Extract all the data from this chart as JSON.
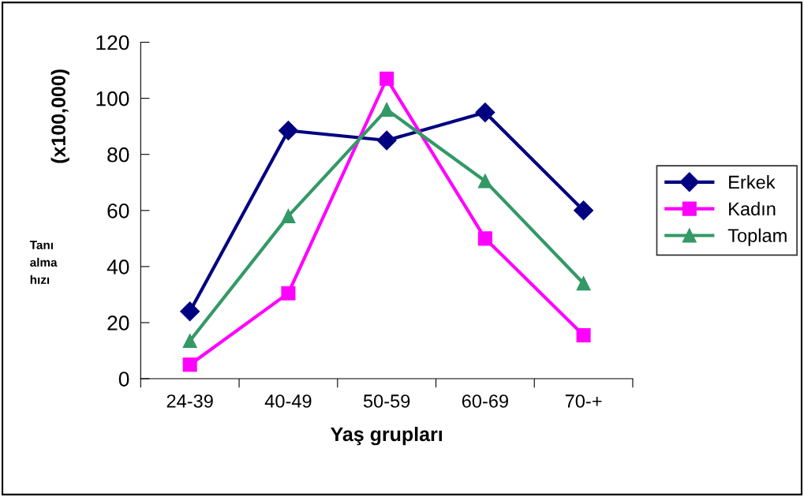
{
  "chart_data": {
    "type": "line",
    "xlabel": "Yaş grupları",
    "ylabel": "(x100,000)",
    "annotations": [
      "Tanı\nalma\nhızı"
    ],
    "categories": [
      "24-39",
      "40-49",
      "50-59",
      "60-69",
      "70-+"
    ],
    "series": [
      {
        "name": "Erkek",
        "color": "#000080",
        "marker": "diamond",
        "values": [
          24,
          88.5,
          85,
          95,
          60
        ]
      },
      {
        "name": "Kadın",
        "color": "#ff00ff",
        "marker": "square",
        "values": [
          5,
          30.5,
          107,
          50,
          15.5
        ]
      },
      {
        "name": "Toplam",
        "color": "#339966",
        "marker": "triangle",
        "values": [
          13.5,
          58,
          96,
          70.5,
          34
        ]
      }
    ],
    "ylim": [
      0,
      120
    ],
    "yticks": [
      0,
      20,
      40,
      60,
      80,
      100,
      120
    ],
    "grid": false,
    "legend": "right",
    "line_style": "solid"
  }
}
